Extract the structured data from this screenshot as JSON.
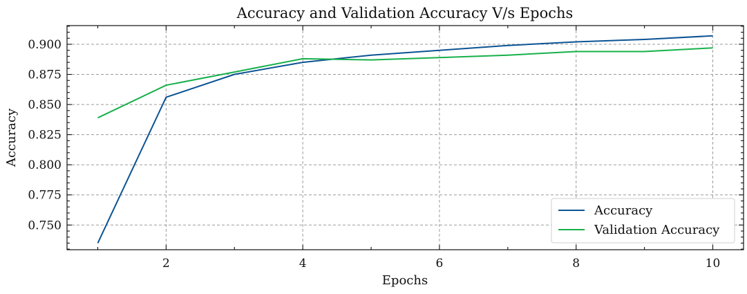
{
  "chart_data": {
    "type": "line",
    "title": "Accuracy and Validation Accuracy V/s Epochs",
    "xlabel": "Epochs",
    "ylabel": "Accuracy",
    "x": [
      1,
      2,
      3,
      4,
      5,
      6,
      7,
      8,
      9,
      10
    ],
    "xlim": [
      0.55,
      10.45
    ],
    "ylim": [
      0.7295,
      0.9155
    ],
    "xticks": [
      2,
      4,
      6,
      8,
      10
    ],
    "xticks_minor": [
      1,
      3,
      5,
      7,
      9
    ],
    "yticks": [
      0.75,
      0.775,
      0.8,
      0.825,
      0.85,
      0.875,
      0.9
    ],
    "ytick_labels": [
      "0.750",
      "0.775",
      "0.800",
      "0.825",
      "0.850",
      "0.875",
      "0.900"
    ],
    "grid": true,
    "legend": {
      "placement": "lower-right"
    },
    "series": [
      {
        "name": "Accuracy",
        "color": "#0b5394",
        "values": [
          0.735,
          0.856,
          0.875,
          0.885,
          0.891,
          0.895,
          0.899,
          0.902,
          0.904,
          0.907
        ]
      },
      {
        "name": "Validation Accuracy",
        "color": "#16b04a",
        "values": [
          0.839,
          0.866,
          0.877,
          0.888,
          0.887,
          0.889,
          0.891,
          0.894,
          0.894,
          0.897
        ]
      }
    ]
  }
}
